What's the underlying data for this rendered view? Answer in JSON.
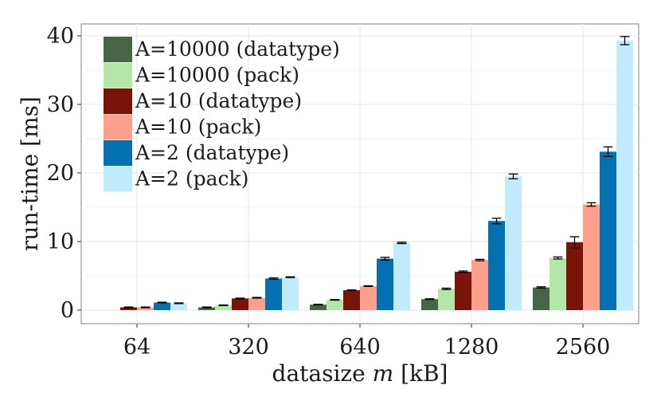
{
  "chart_data": {
    "type": "bar",
    "title": "",
    "xlabel": "datasize m [kB]",
    "xlabel_prefix": "datasize ",
    "xlabel_var": "m",
    "xlabel_suffix": " [kB]",
    "ylabel": "run-time [ms]",
    "ylim": [
      0,
      41.5
    ],
    "yticks": [
      0,
      10,
      20,
      30,
      40
    ],
    "grid": true,
    "legend_position": "top-left",
    "categories": [
      "64",
      "320",
      "640",
      "1280",
      "2560"
    ],
    "series": [
      {
        "name": "A=10000 (datatype)",
        "color": "#466446",
        "values": [
          null,
          0.4,
          0.8,
          1.6,
          3.3
        ],
        "errors": [
          null,
          0.05,
          0.05,
          0.05,
          0.1
        ]
      },
      {
        "name": "A=10000 (pack)",
        "color": "#b4e6aa",
        "values": [
          null,
          0.7,
          1.5,
          3.1,
          7.6
        ],
        "errors": [
          null,
          0.05,
          0.05,
          0.1,
          0.15
        ]
      },
      {
        "name": "A=10 (datatype)",
        "color": "#7a1409",
        "values": [
          0.4,
          1.7,
          2.9,
          5.6,
          9.9
        ],
        "errors": [
          0.05,
          0.05,
          0.05,
          0.1,
          0.8
        ]
      },
      {
        "name": "A=10 (pack)",
        "color": "#ffa08c",
        "values": [
          0.4,
          1.8,
          3.5,
          7.3,
          15.4
        ],
        "errors": [
          0.05,
          0.05,
          0.05,
          0.1,
          0.25
        ]
      },
      {
        "name": "A=2 (datatype)",
        "color": "#0570b0",
        "values": [
          1.1,
          4.6,
          7.5,
          13.0,
          23.1
        ],
        "errors": [
          0.05,
          0.1,
          0.2,
          0.4,
          0.7
        ]
      },
      {
        "name": "A=2 (pack)",
        "color": "#bfebfc",
        "values": [
          1.0,
          4.8,
          9.8,
          19.5,
          39.3
        ],
        "errors": [
          0.05,
          0.05,
          0.1,
          0.35,
          0.6
        ]
      }
    ]
  }
}
